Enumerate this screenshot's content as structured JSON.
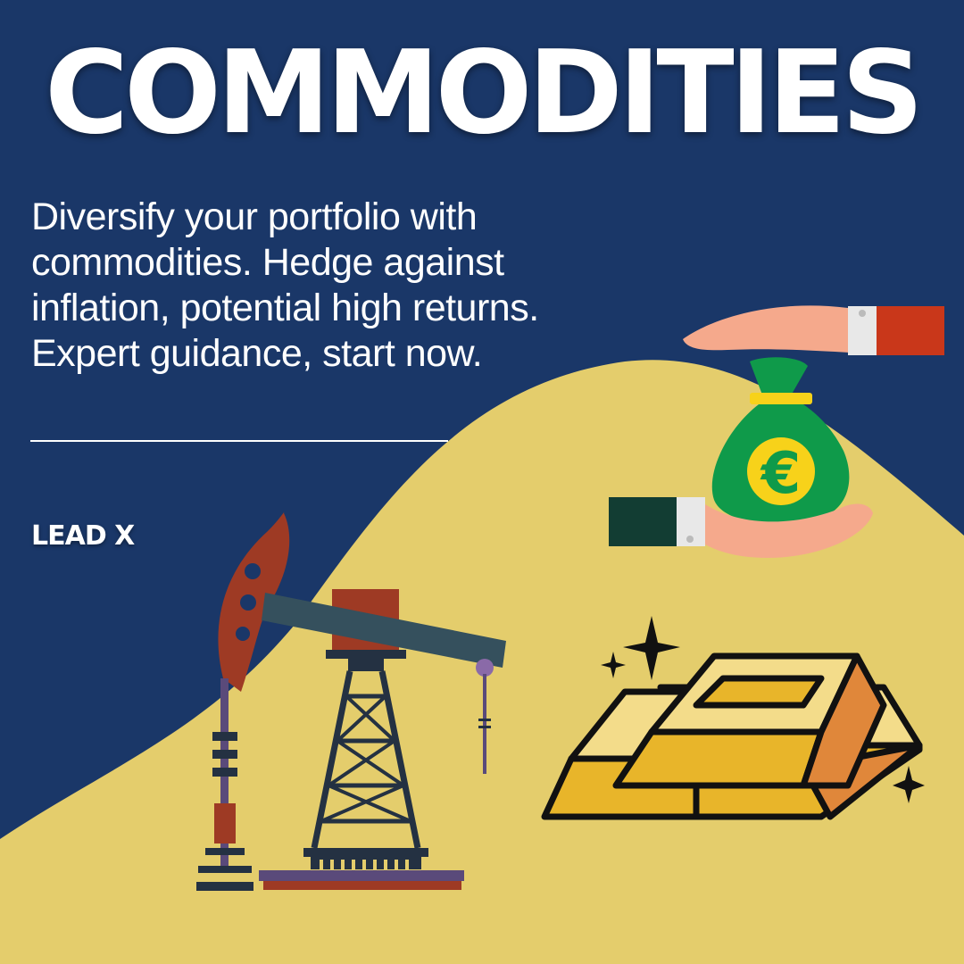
{
  "title": "COMMODITIES",
  "description": "Diversify your portfolio with commodities. Hedge against inflation, potential high returns. Expert guidance, start now.",
  "brand": "LEAD X",
  "money_bag_symbol": "€",
  "colors": {
    "background": "#1a3768",
    "hill": "#e4cd6c",
    "text": "#ffffff",
    "gold": "#e8b52a",
    "bag": "#0f9a4a",
    "pump": "#9e3a24"
  },
  "icons": [
    "oil-pump-jack-icon",
    "money-bag-icon",
    "hands-icon",
    "gold-bars-icon",
    "sparkle-icon"
  ]
}
